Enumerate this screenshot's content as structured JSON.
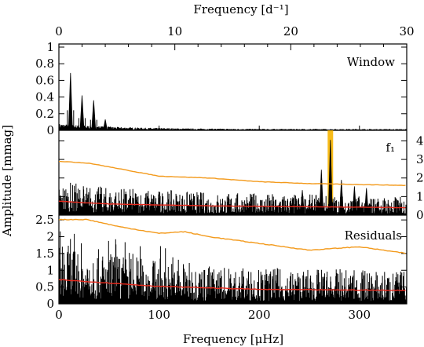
{
  "chart_data": {
    "type": "line",
    "axes": {
      "top_xlabel": "Frequency [d⁻¹]",
      "top_xticks": [
        "0",
        "10",
        "20",
        "30"
      ],
      "top_xlim": [
        0,
        30
      ],
      "bottom_xlabel": "Frequency [μHz]",
      "bottom_xticks": [
        "0",
        "100",
        "200",
        "300"
      ],
      "bottom_xlim": [
        0,
        347.2
      ],
      "ylabel": "Amplitude [mmag]"
    },
    "panels": [
      {
        "label": "Window",
        "ylim": [
          0,
          1.0
        ],
        "yticks_left": [
          "0",
          "0.2",
          "0.4",
          "0.6",
          "0.8",
          "1"
        ],
        "peaks": [
          {
            "x": 11.6,
            "y": 0.69
          },
          {
            "x": 23.1,
            "y": 0.42
          },
          {
            "x": 34.7,
            "y": 0.36
          },
          {
            "x": 46.3,
            "y": 0.13
          }
        ]
      },
      {
        "label": "f₁",
        "ylim": [
          0,
          4.4
        ],
        "yticks_right": [
          "0",
          "1",
          "2",
          "3",
          "4"
        ],
        "highlight": {
          "x": 271.0,
          "color": "#f2b000"
        },
        "orange_threshold": [
          [
            0,
            2.9
          ],
          [
            30,
            2.8
          ],
          [
            100,
            2.1
          ],
          [
            150,
            2.0
          ],
          [
            200,
            1.8
          ],
          [
            250,
            1.7
          ],
          [
            347,
            1.6
          ]
        ],
        "red_mean": [
          [
            0,
            0.75
          ],
          [
            50,
            0.6
          ],
          [
            150,
            0.5
          ],
          [
            250,
            0.45
          ],
          [
            347,
            0.4
          ]
        ],
        "peaks": [
          {
            "x": 262,
            "y": 2.45
          },
          {
            "x": 271,
            "y": 4.05
          },
          {
            "x": 282,
            "y": 1.9
          },
          {
            "x": 295,
            "y": 1.55
          },
          {
            "x": 307,
            "y": 1.45
          },
          {
            "x": 243,
            "y": 1.35
          }
        ]
      },
      {
        "label": "Residuals",
        "ylim": [
          0,
          2.55
        ],
        "yticks_left": [
          "0",
          "0.5",
          "1",
          "1.5",
          "2",
          "2.5"
        ],
        "orange_threshold": [
          [
            0,
            2.75
          ],
          [
            30,
            2.5
          ],
          [
            60,
            2.3
          ],
          [
            100,
            2.1
          ],
          [
            125,
            2.15
          ],
          [
            150,
            2.0
          ],
          [
            200,
            1.8
          ],
          [
            250,
            1.6
          ],
          [
            300,
            1.7
          ],
          [
            347,
            1.5
          ]
        ],
        "red_mean": [
          [
            0,
            0.72
          ],
          [
            100,
            0.52
          ],
          [
            200,
            0.43
          ],
          [
            347,
            0.4
          ]
        ]
      }
    ],
    "colors": {
      "spectrum": "#000000",
      "threshold": "#f39a1c",
      "mean": "#e8291c",
      "highlight": "#f7b500"
    }
  }
}
